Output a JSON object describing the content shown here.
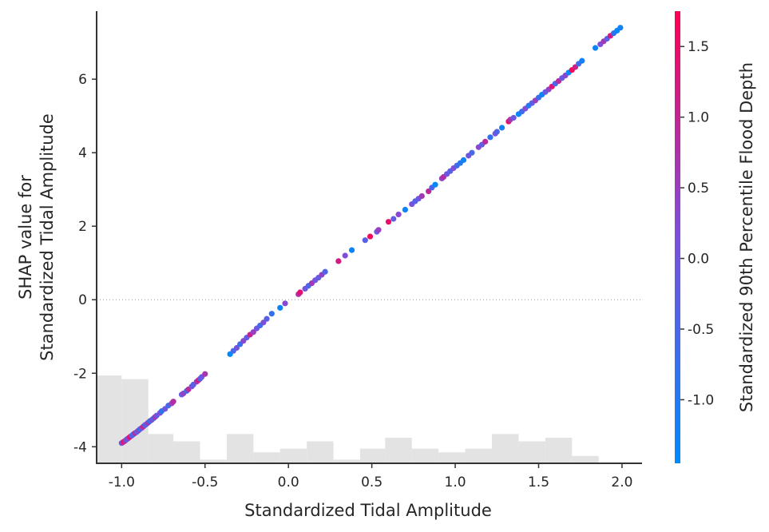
{
  "chart_data": {
    "type": "scatter",
    "xlabel": "Standardized Tidal Amplitude",
    "ylabel_lines": [
      "SHAP value for",
      "Standardized Tidal Amplitude"
    ],
    "colorbar_label": "Standardized 90th Percentile Flood Depth",
    "xlim": [
      -1.15,
      2.12
    ],
    "ylim": [
      -4.45,
      7.85
    ],
    "x_ticks": [
      "-1.0",
      "-0.5",
      "0.0",
      "0.5",
      "1.0",
      "1.5",
      "2.0"
    ],
    "x_tick_values": [
      -1.0,
      -0.5,
      0.0,
      0.5,
      1.0,
      1.5,
      2.0
    ],
    "y_ticks": [
      "-4",
      "-2",
      "0",
      "2",
      "4",
      "6"
    ],
    "y_tick_values": [
      -4,
      -2,
      0,
      2,
      4,
      6
    ],
    "colorbar_range": [
      -1.45,
      1.75
    ],
    "colorbar_ticks": [
      "-1.0",
      "-0.5",
      "0.0",
      "0.5",
      "1.0",
      "1.5"
    ],
    "colorbar_tick_values": [
      -1.0,
      -0.5,
      0.0,
      0.5,
      1.0,
      1.5
    ],
    "colormap": [
      "#008afb",
      "#7c4fdc",
      "#ff0052"
    ],
    "zero_line": true,
    "histogram": {
      "bin_edges": [
        -1.15,
        -1.0,
        -0.84,
        -0.69,
        -0.53,
        -0.37,
        -0.21,
        -0.05,
        0.11,
        0.27,
        0.43,
        0.58,
        0.74,
        0.9,
        1.06,
        1.22,
        1.38,
        1.54,
        1.7,
        1.86
      ],
      "counts": [
        24,
        23,
        8,
        6,
        1,
        8,
        3,
        4,
        6,
        1,
        4,
        7,
        4,
        3,
        4,
        8,
        6,
        7,
        2
      ],
      "color": "#e3e3e3"
    },
    "points": [
      {
        "x": -1.0,
        "y": -3.9,
        "c": 0.1
      },
      {
        "x": -0.99,
        "y": -3.87,
        "c": 1.3
      },
      {
        "x": -0.98,
        "y": -3.84,
        "c": 0.8
      },
      {
        "x": -0.97,
        "y": -3.8,
        "c": -0.3
      },
      {
        "x": -0.96,
        "y": -3.77,
        "c": 0.5
      },
      {
        "x": -0.95,
        "y": -3.73,
        "c": 1.6
      },
      {
        "x": -0.94,
        "y": -3.7,
        "c": 0.0
      },
      {
        "x": -0.93,
        "y": -3.66,
        "c": -0.6
      },
      {
        "x": -0.92,
        "y": -3.63,
        "c": 0.9
      },
      {
        "x": -0.91,
        "y": -3.6,
        "c": -0.2
      },
      {
        "x": -0.9,
        "y": -3.56,
        "c": 0.4
      },
      {
        "x": -0.89,
        "y": -3.52,
        "c": -0.8
      },
      {
        "x": -0.88,
        "y": -3.49,
        "c": 0.2
      },
      {
        "x": -0.87,
        "y": -3.45,
        "c": 1.1
      },
      {
        "x": -0.86,
        "y": -3.41,
        "c": -0.4
      },
      {
        "x": -0.85,
        "y": -3.38,
        "c": 0.0
      },
      {
        "x": -0.84,
        "y": -3.34,
        "c": 0.6
      },
      {
        "x": -0.83,
        "y": -3.3,
        "c": -1.0
      },
      {
        "x": -0.82,
        "y": -3.27,
        "c": 0.3
      },
      {
        "x": -0.81,
        "y": -3.23,
        "c": -0.5
      },
      {
        "x": -0.8,
        "y": -3.19,
        "c": 0.7
      },
      {
        "x": -0.79,
        "y": -3.15,
        "c": -0.1
      },
      {
        "x": -0.77,
        "y": -3.08,
        "c": 0.2
      },
      {
        "x": -0.76,
        "y": -3.03,
        "c": -0.9
      },
      {
        "x": -0.74,
        "y": -2.97,
        "c": 0.0
      },
      {
        "x": -0.72,
        "y": -2.88,
        "c": -0.6
      },
      {
        "x": -0.7,
        "y": -2.82,
        "c": 0.5
      },
      {
        "x": -0.69,
        "y": -2.77,
        "c": 0.8
      },
      {
        "x": -0.64,
        "y": -2.58,
        "c": -0.2
      },
      {
        "x": -0.63,
        "y": -2.55,
        "c": 0.4
      },
      {
        "x": -0.61,
        "y": -2.48,
        "c": -0.7
      },
      {
        "x": -0.6,
        "y": -2.44,
        "c": 0.9
      },
      {
        "x": -0.58,
        "y": -2.36,
        "c": 0.1
      },
      {
        "x": -0.57,
        "y": -2.31,
        "c": -0.3
      },
      {
        "x": -0.55,
        "y": -2.23,
        "c": 0.6
      },
      {
        "x": -0.54,
        "y": -2.19,
        "c": 1.2
      },
      {
        "x": -0.53,
        "y": -2.15,
        "c": -0.4
      },
      {
        "x": -0.52,
        "y": -2.1,
        "c": 0.0
      },
      {
        "x": -0.5,
        "y": -2.02,
        "c": 0.7
      },
      {
        "x": -0.35,
        "y": -1.48,
        "c": -1.4
      },
      {
        "x": -0.33,
        "y": -1.39,
        "c": -0.5
      },
      {
        "x": -0.31,
        "y": -1.31,
        "c": 0.0
      },
      {
        "x": -0.29,
        "y": -1.21,
        "c": -0.7
      },
      {
        "x": -0.27,
        "y": -1.12,
        "c": 0.3
      },
      {
        "x": -0.25,
        "y": -1.03,
        "c": -0.2
      },
      {
        "x": -0.23,
        "y": -0.95,
        "c": 1.0
      },
      {
        "x": -0.21,
        "y": -0.88,
        "c": 0.5
      },
      {
        "x": -0.19,
        "y": -0.78,
        "c": 0.0
      },
      {
        "x": -0.17,
        "y": -0.7,
        "c": -0.6
      },
      {
        "x": -0.15,
        "y": -0.62,
        "c": 0.2
      },
      {
        "x": -0.13,
        "y": -0.52,
        "c": -0.3
      },
      {
        "x": -0.1,
        "y": -0.38,
        "c": -0.8
      },
      {
        "x": -0.05,
        "y": -0.22,
        "c": -1.3
      },
      {
        "x": -0.02,
        "y": -0.1,
        "c": 0.3
      },
      {
        "x": 0.06,
        "y": 0.15,
        "c": 0.8
      },
      {
        "x": 0.07,
        "y": 0.2,
        "c": 1.4
      },
      {
        "x": 0.1,
        "y": 0.3,
        "c": 0.0
      },
      {
        "x": 0.12,
        "y": 0.38,
        "c": -0.5
      },
      {
        "x": 0.14,
        "y": 0.45,
        "c": 0.6
      },
      {
        "x": 0.16,
        "y": 0.53,
        "c": 0.1
      },
      {
        "x": 0.18,
        "y": 0.6,
        "c": -0.2
      },
      {
        "x": 0.2,
        "y": 0.68,
        "c": 0.4
      },
      {
        "x": 0.22,
        "y": 0.76,
        "c": -0.4
      },
      {
        "x": 0.3,
        "y": 1.05,
        "c": 1.2
      },
      {
        "x": 0.34,
        "y": 1.2,
        "c": 0.2
      },
      {
        "x": 0.38,
        "y": 1.35,
        "c": -1.3
      },
      {
        "x": 0.46,
        "y": 1.62,
        "c": -0.3
      },
      {
        "x": 0.49,
        "y": 1.72,
        "c": 1.6
      },
      {
        "x": 0.53,
        "y": 1.85,
        "c": 0.0
      },
      {
        "x": 0.54,
        "y": 1.9,
        "c": 0.5
      },
      {
        "x": 0.6,
        "y": 2.12,
        "c": 1.5
      },
      {
        "x": 0.63,
        "y": 2.2,
        "c": -0.2
      },
      {
        "x": 0.66,
        "y": 2.32,
        "c": 0.3
      },
      {
        "x": 0.7,
        "y": 2.45,
        "c": -1.2
      },
      {
        "x": 0.74,
        "y": 2.6,
        "c": 0.1
      },
      {
        "x": 0.76,
        "y": 2.68,
        "c": -0.4
      },
      {
        "x": 0.78,
        "y": 2.75,
        "c": 0.0
      },
      {
        "x": 0.8,
        "y": 2.82,
        "c": 0.6
      },
      {
        "x": 0.84,
        "y": 2.95,
        "c": 0.9
      },
      {
        "x": 0.86,
        "y": 3.05,
        "c": -0.5
      },
      {
        "x": 0.88,
        "y": 3.13,
        "c": -1.4
      },
      {
        "x": 0.92,
        "y": 3.3,
        "c": 0.4
      },
      {
        "x": 0.93,
        "y": 3.34,
        "c": 0.8
      },
      {
        "x": 0.95,
        "y": 3.42,
        "c": 0.0
      },
      {
        "x": 0.97,
        "y": 3.5,
        "c": -0.3
      },
      {
        "x": 0.99,
        "y": 3.58,
        "c": 0.2
      },
      {
        "x": 1.01,
        "y": 3.65,
        "c": -0.6
      },
      {
        "x": 1.03,
        "y": 3.72,
        "c": -1.0
      },
      {
        "x": 1.05,
        "y": 3.8,
        "c": -1.3
      },
      {
        "x": 1.08,
        "y": 3.92,
        "c": 0.0
      },
      {
        "x": 1.1,
        "y": 4.0,
        "c": -0.5
      },
      {
        "x": 1.14,
        "y": 4.15,
        "c": 0.3
      },
      {
        "x": 1.16,
        "y": 4.22,
        "c": -0.2
      },
      {
        "x": 1.18,
        "y": 4.3,
        "c": 0.9
      },
      {
        "x": 1.21,
        "y": 4.42,
        "c": -0.8
      },
      {
        "x": 1.24,
        "y": 4.52,
        "c": 0.1
      },
      {
        "x": 1.25,
        "y": 4.57,
        "c": -0.4
      },
      {
        "x": 1.28,
        "y": 4.68,
        "c": -1.2
      },
      {
        "x": 1.32,
        "y": 4.85,
        "c": 1.4
      },
      {
        "x": 1.33,
        "y": 4.9,
        "c": 0.7
      },
      {
        "x": 1.35,
        "y": 4.95,
        "c": -0.1
      },
      {
        "x": 1.38,
        "y": 5.05,
        "c": -1.4
      },
      {
        "x": 1.4,
        "y": 5.12,
        "c": -0.6
      },
      {
        "x": 1.42,
        "y": 5.2,
        "c": 0.2
      },
      {
        "x": 1.44,
        "y": 5.28,
        "c": -1.0
      },
      {
        "x": 1.46,
        "y": 5.35,
        "c": -0.3
      },
      {
        "x": 1.48,
        "y": 5.42,
        "c": 0.5
      },
      {
        "x": 1.5,
        "y": 5.5,
        "c": -0.7
      },
      {
        "x": 1.52,
        "y": 5.58,
        "c": -1.3
      },
      {
        "x": 1.54,
        "y": 5.65,
        "c": -0.2
      },
      {
        "x": 1.56,
        "y": 5.72,
        "c": 0.4
      },
      {
        "x": 1.58,
        "y": 5.8,
        "c": 1.3
      },
      {
        "x": 1.6,
        "y": 5.88,
        "c": -0.5
      },
      {
        "x": 1.62,
        "y": 5.95,
        "c": 0.9
      },
      {
        "x": 1.64,
        "y": 6.03,
        "c": -0.1
      },
      {
        "x": 1.66,
        "y": 6.1,
        "c": 0.3
      },
      {
        "x": 1.68,
        "y": 6.18,
        "c": -1.4
      },
      {
        "x": 1.7,
        "y": 6.25,
        "c": 1.6
      },
      {
        "x": 1.72,
        "y": 6.33,
        "c": 1.1
      },
      {
        "x": 1.74,
        "y": 6.42,
        "c": -0.6
      },
      {
        "x": 1.76,
        "y": 6.5,
        "c": -1.2
      },
      {
        "x": 1.84,
        "y": 6.85,
        "c": -1.3
      },
      {
        "x": 1.87,
        "y": 6.95,
        "c": 0.2
      },
      {
        "x": 1.89,
        "y": 7.03,
        "c": 0.6
      },
      {
        "x": 1.91,
        "y": 7.1,
        "c": -0.3
      },
      {
        "x": 1.93,
        "y": 7.18,
        "c": 1.2
      },
      {
        "x": 1.95,
        "y": 7.25,
        "c": -0.8
      },
      {
        "x": 1.97,
        "y": 7.32,
        "c": -1.4
      },
      {
        "x": 1.99,
        "y": 7.4,
        "c": -1.2
      }
    ]
  }
}
